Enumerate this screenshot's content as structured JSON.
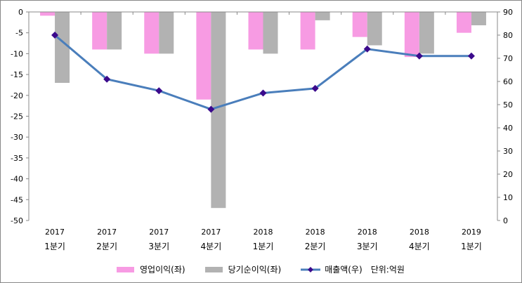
{
  "chart_data": {
    "type": "bar+line",
    "categories": [
      [
        "2017",
        "1분기"
      ],
      [
        "2017",
        "2분기"
      ],
      [
        "2017",
        "3분기"
      ],
      [
        "2017",
        "4분기"
      ],
      [
        "2018",
        "1분기"
      ],
      [
        "2018",
        "2분기"
      ],
      [
        "2018",
        "3분기"
      ],
      [
        "2018",
        "4분기"
      ],
      [
        "2019",
        "1분기"
      ]
    ],
    "left_axis": {
      "ylim": [
        -50,
        0
      ],
      "ticks": [
        0,
        -5,
        -10,
        -15,
        -20,
        -25,
        -30,
        -35,
        -40,
        -45,
        -50
      ]
    },
    "right_axis": {
      "ylim": [
        0,
        90
      ],
      "ticks": [
        90,
        80,
        70,
        60,
        50,
        40,
        30,
        20,
        10,
        0
      ]
    },
    "series": [
      {
        "name": "영업이익(좌)",
        "type": "bar",
        "axis": "left",
        "color": "#f79be3",
        "values": [
          -0.9,
          -9,
          -10,
          -21,
          -9,
          -9,
          -6,
          -10.8,
          -5
        ]
      },
      {
        "name": "당기순이익(좌)",
        "type": "bar",
        "axis": "left",
        "color": "#b2b2b2",
        "values": [
          -17,
          -9,
          -10,
          -47,
          -10,
          -2,
          -8,
          -10,
          -3.2
        ]
      },
      {
        "name": "매출액(우)",
        "type": "line",
        "axis": "right",
        "color": "#4a7ebb",
        "marker_color": "#3b0a8c",
        "values": [
          80,
          61,
          56,
          48,
          55,
          57,
          74,
          71,
          71
        ]
      }
    ],
    "unit_note": "단위:억원",
    "legend": "bottom"
  }
}
